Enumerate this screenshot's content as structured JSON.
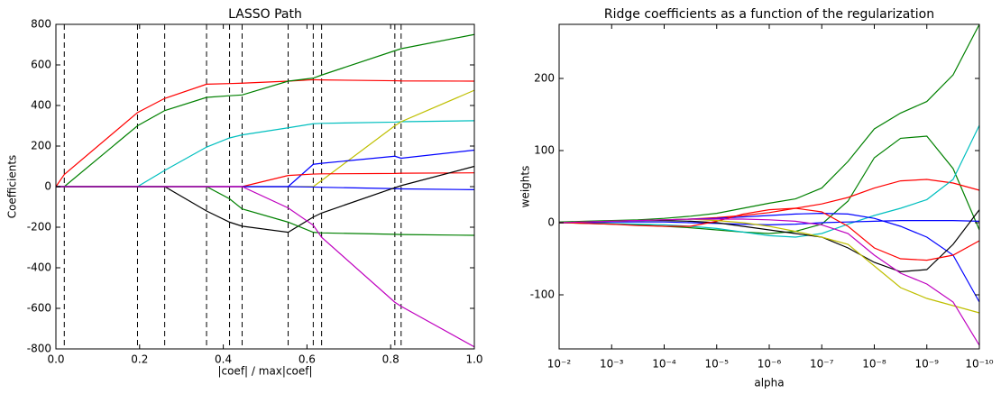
{
  "chart_data": [
    {
      "type": "line",
      "title": "LASSO Path",
      "xlabel": "|coef| / max|coef|",
      "ylabel": "Coefficients",
      "xlim": [
        0,
        1
      ],
      "ylim": [
        -800,
        800
      ],
      "xticks": [
        {
          "value": 0,
          "label": "0.0"
        },
        {
          "value": 0.2,
          "label": "0.2"
        },
        {
          "value": 0.4,
          "label": "0.4"
        },
        {
          "value": 0.6,
          "label": "0.6"
        },
        {
          "value": 0.8,
          "label": "0.8"
        },
        {
          "value": 1,
          "label": "1.0"
        }
      ],
      "yticks": [
        -800,
        -600,
        -400,
        -200,
        0,
        200,
        400,
        600,
        800
      ],
      "vlines": [
        0.02,
        0.195,
        0.26,
        0.36,
        0.415,
        0.445,
        0.555,
        0.615,
        0.635,
        0.81,
        0.825
      ],
      "x": [
        0,
        0.02,
        0.195,
        0.26,
        0.36,
        0.415,
        0.445,
        0.555,
        0.615,
        0.635,
        0.81,
        0.825,
        1
      ],
      "series": [
        {
          "color": "#ff0000",
          "values": [
            0,
            60,
            365,
            435,
            505,
            508,
            510,
            520,
            527,
            526,
            522,
            521,
            520
          ]
        },
        {
          "color": "#008000",
          "values": [
            0,
            0,
            300,
            375,
            440,
            448,
            452,
            520,
            535,
            550,
            670,
            680,
            750
          ]
        },
        {
          "color": "#00bfbf",
          "values": [
            0,
            0,
            0,
            80,
            195,
            240,
            255,
            290,
            310,
            312,
            318,
            320,
            325
          ]
        },
        {
          "color": "#bfbf00",
          "values": [
            0,
            0,
            0,
            0,
            0,
            0,
            0,
            0,
            0,
            30,
            300,
            320,
            475
          ]
        },
        {
          "color": "#0000ff",
          "values": [
            0,
            0,
            0,
            0,
            0,
            0,
            0,
            0,
            110,
            115,
            150,
            140,
            180
          ]
        },
        {
          "color": "#ff0000",
          "values": [
            0,
            0,
            0,
            0,
            0,
            0,
            0,
            55,
            62,
            63,
            65,
            66,
            68
          ]
        },
        {
          "color": "#0000ff",
          "values": [
            0,
            0,
            0,
            0,
            0,
            0,
            0,
            0,
            -2,
            -3,
            -10,
            -11,
            -15
          ]
        },
        {
          "color": "#000000",
          "values": [
            0,
            0,
            0,
            0,
            -120,
            -175,
            -195,
            -225,
            -150,
            -130,
            -5,
            5,
            100
          ]
        },
        {
          "color": "#008000",
          "values": [
            0,
            0,
            0,
            0,
            0,
            -60,
            -110,
            -175,
            -225,
            -228,
            -235,
            -236,
            -240
          ]
        },
        {
          "color": "#bf00bf",
          "values": [
            0,
            0,
            0,
            0,
            0,
            0,
            0,
            -105,
            -190,
            -250,
            -570,
            -590,
            -790
          ]
        }
      ]
    },
    {
      "type": "line",
      "title": "Ridge coefficients as a function of the regularization",
      "xlabel": "alpha",
      "ylabel": "weights",
      "xscale": "log",
      "xlim": [
        0.01,
        1e-10
      ],
      "ylim": [
        -175,
        275
      ],
      "xticks": [
        {
          "value": 0.01,
          "label": "10⁻²"
        },
        {
          "value": 0.001,
          "label": "10⁻³"
        },
        {
          "value": 0.0001,
          "label": "10⁻⁴"
        },
        {
          "value": 1e-05,
          "label": "10⁻⁵"
        },
        {
          "value": 1e-06,
          "label": "10⁻⁶"
        },
        {
          "value": 1e-07,
          "label": "10⁻⁷"
        },
        {
          "value": 1e-08,
          "label": "10⁻⁸"
        },
        {
          "value": 1e-09,
          "label": "10⁻⁹"
        },
        {
          "value": 1e-10,
          "label": "10⁻¹⁰"
        }
      ],
      "yticks": [
        -100,
        0,
        100,
        200
      ],
      "x": [
        0.01,
        0.00316,
        0.001,
        0.000316,
        0.0001,
        3.16e-05,
        1e-05,
        3.16e-06,
        1e-06,
        3.16e-07,
        1e-07,
        3.16e-08,
        1e-08,
        3.16e-09,
        1e-09,
        3.16e-10,
        1e-10
      ],
      "series": [
        {
          "color": "#008000",
          "values": [
            1,
            2,
            3,
            4,
            6,
            9,
            13,
            20,
            27,
            33,
            48,
            85,
            130,
            152,
            168,
            205,
            275
          ]
        },
        {
          "color": "#008000",
          "values": [
            0,
            -1,
            -2,
            -3,
            -5,
            -7,
            -10,
            -13,
            -15,
            -12,
            -2,
            30,
            90,
            117,
            120,
            75,
            -10
          ]
        },
        {
          "color": "#ff0000",
          "values": [
            0,
            1,
            2,
            3,
            4,
            5,
            7,
            10,
            14,
            20,
            26,
            35,
            48,
            58,
            60,
            55,
            45
          ]
        },
        {
          "color": "#00bfbf",
          "values": [
            0,
            0,
            -1,
            -2,
            -3,
            -5,
            -8,
            -13,
            -18,
            -20,
            -15,
            -2,
            10,
            20,
            32,
            60,
            135
          ]
        },
        {
          "color": "#0000ff",
          "values": [
            0,
            1,
            2,
            3,
            4,
            5,
            6,
            8,
            10,
            12,
            13,
            12,
            6,
            -5,
            -20,
            -45,
            -110
          ]
        },
        {
          "color": "#0000ff",
          "values": [
            0,
            0,
            1,
            1,
            1,
            0,
            -1,
            -2,
            -3,
            -2,
            0,
            1,
            2,
            3,
            3,
            3,
            2
          ]
        },
        {
          "color": "#000000",
          "values": [
            0,
            1,
            2,
            3,
            3,
            2,
            0,
            -5,
            -10,
            -15,
            -20,
            -35,
            -55,
            -68,
            -65,
            -30,
            18
          ]
        },
        {
          "color": "#ff0000",
          "values": [
            0,
            -1,
            -2,
            -4,
            -5,
            -5,
            2,
            12,
            18,
            20,
            15,
            -5,
            -35,
            -50,
            -52,
            -45,
            -25
          ]
        },
        {
          "color": "#bfbf00",
          "values": [
            0,
            1,
            2,
            3,
            4,
            5,
            3,
            0,
            -5,
            -12,
            -20,
            -30,
            -60,
            -90,
            -105,
            -115,
            -125
          ]
        },
        {
          "color": "#bf00bf",
          "values": [
            0,
            1,
            2,
            3,
            4,
            5,
            5,
            5,
            4,
            2,
            -3,
            -15,
            -45,
            -70,
            -85,
            -110,
            -170
          ]
        }
      ]
    }
  ]
}
